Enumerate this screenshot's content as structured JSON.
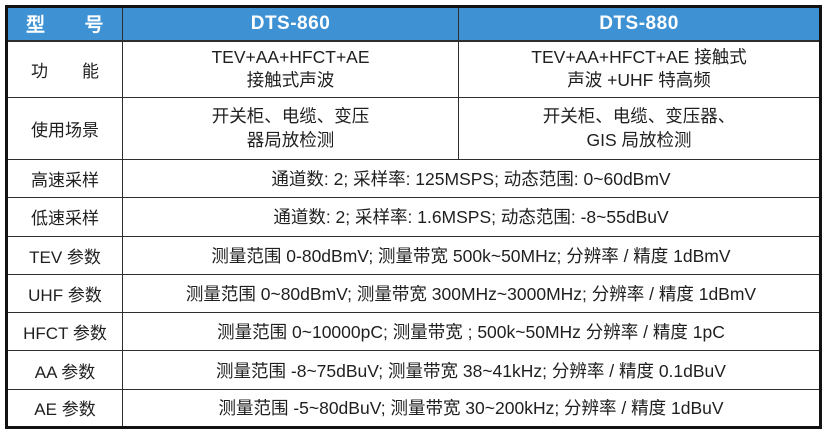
{
  "colors": {
    "header_bg": "#3E92D3",
    "header_text": "#FFFFFF",
    "outer_border": "#121212",
    "inner_border": "#2E2E2E",
    "text": "#1F1F1F"
  },
  "header": {
    "model_label": "型　　号",
    "col_860": "DTS-860",
    "col_880": "DTS-880"
  },
  "rows": {
    "function": {
      "label": "功　　能",
      "dts860_line1": "TEV+AA+HFCT+AE",
      "dts860_line2": "接触式声波",
      "dts880_line1": "TEV+AA+HFCT+AE 接触式",
      "dts880_line2": "声波 +UHF 特高频"
    },
    "scenario": {
      "label": "使用场景",
      "dts860_line1": "开关柜、电缆、变压",
      "dts860_line2": "器局放检测",
      "dts880_line1": "开关柜、电缆、变压器、",
      "dts880_line2": "GIS 局放检测"
    },
    "spanning": [
      {
        "label": "高速采样",
        "value": "通道数: 2; 采样率: 125MSPS; 动态范围: 0~60dBmV"
      },
      {
        "label": "低速采样",
        "value": "通道数: 2; 采样率: 1.6MSPS; 动态范围: -8~55dBuV"
      },
      {
        "label": "TEV 参数",
        "value": "测量范围 0-80dBmV; 测量带宽 500k~50MHz; 分辨率 / 精度 1dBmV"
      },
      {
        "label": "UHF 参数",
        "value": "测量范围 0~80dBmV; 测量带宽 300MHz~3000MHz; 分辨率 / 精度 1dBmV"
      },
      {
        "label": "HFCT 参数",
        "value": "测量范围 0~10000pC; 测量带宽 ; 500k~50MHz 分辨率 / 精度 1pC"
      },
      {
        "label": "AA 参数",
        "value": "测量范围 -8~75dBuV; 测量带宽 38~41kHz; 分辨率 / 精度 0.1dBuV"
      },
      {
        "label": "AE 参数",
        "value": "测量范围 -5~80dBuV; 测量带宽 30~200kHz; 分辨率 / 精度 1dBuV"
      }
    ]
  }
}
